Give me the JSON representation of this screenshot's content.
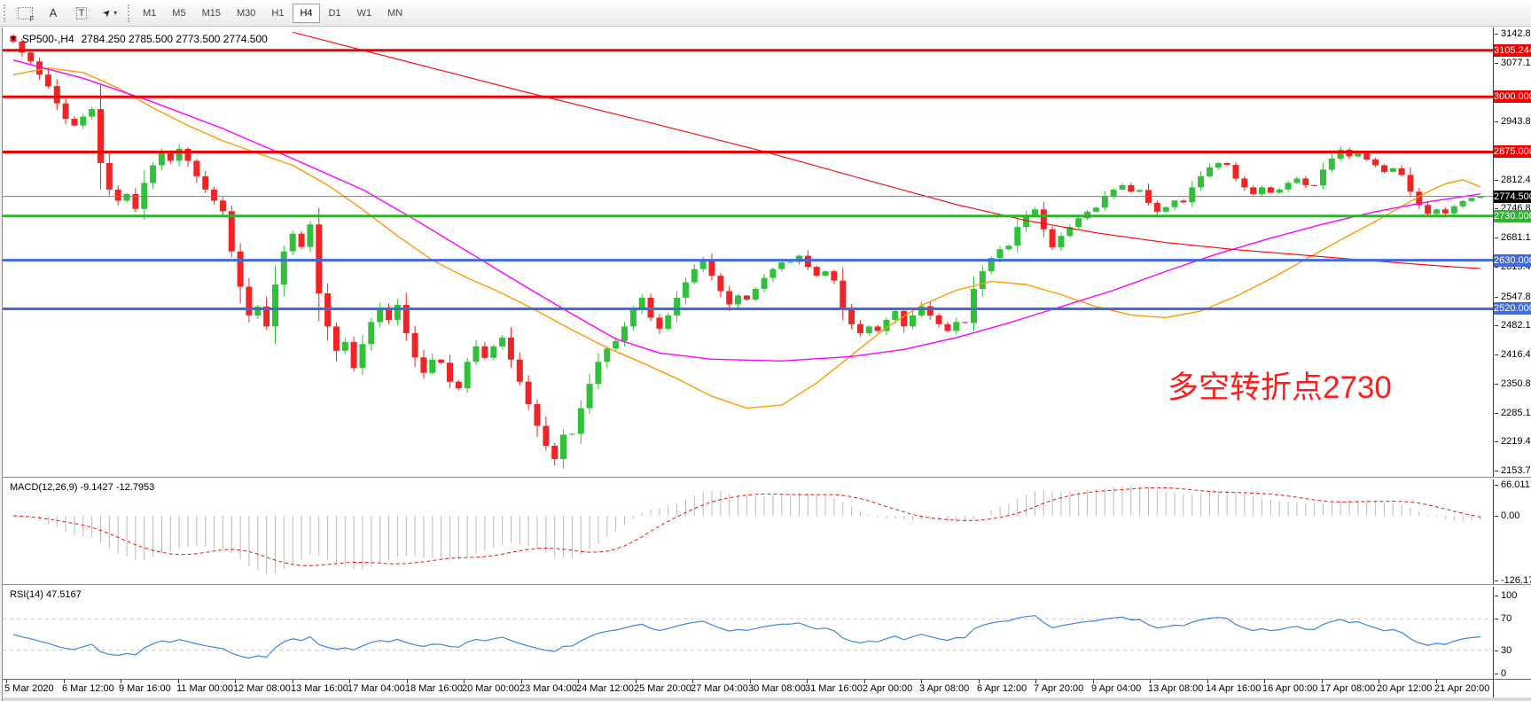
{
  "toolbar": {
    "tools": [
      {
        "name": "chart-shift-tool",
        "glyph": "F"
      },
      {
        "name": "font-tool",
        "glyph": "A"
      },
      {
        "name": "text-tool",
        "glyph": "T"
      },
      {
        "name": "draw-tools",
        "glyph": "➤",
        "caret": "▾"
      }
    ],
    "timeframes": [
      "M1",
      "M5",
      "M15",
      "M30",
      "H1",
      "H4",
      "D1",
      "W1",
      "MN"
    ],
    "active_timeframe": "H4"
  },
  "chart": {
    "dropdown_glyph": "▼",
    "symbol": "SP500-,H4",
    "ohlc_text": "2784.250 2785.500 2773.500 2774.500"
  },
  "annotation": {
    "text": "多空转折点2730",
    "color": "#ff1c1c"
  },
  "indicators": {
    "macd_label": "MACD(12,26,9) -9.1427 -12.7953",
    "rsi_label": "RSI(14) 47.5167"
  },
  "chart_data": {
    "type": "candlestick",
    "symbol": "SP500-",
    "timeframe": "H4",
    "title": "SP500- H4 candlestick chart with MACD and RSI",
    "last_price": 2774.5,
    "first_open": 3138,
    "bull_color": "#2fc13a",
    "bear_color": "#ee2524",
    "closes": [
      3125,
      3100,
      3080,
      3050,
      3024,
      2985,
      2950,
      2935,
      2955,
      2972,
      2850,
      2790,
      2765,
      2780,
      2746,
      2805,
      2845,
      2875,
      2855,
      2882,
      2855,
      2820,
      2790,
      2765,
      2741,
      2650,
      2570,
      2505,
      2525,
      2480,
      2575,
      2650,
      2690,
      2660,
      2711,
      2555,
      2480,
      2425,
      2445,
      2386,
      2440,
      2490,
      2520,
      2495,
      2529,
      2465,
      2410,
      2375,
      2405,
      2398,
      2355,
      2340,
      2400,
      2435,
      2409,
      2435,
      2455,
      2405,
      2355,
      2304,
      2255,
      2210,
      2180,
      2235,
      2237,
      2295,
      2350,
      2400,
      2430,
      2447,
      2480,
      2520,
      2545,
      2500,
      2475,
      2505,
      2545,
      2580,
      2610,
      2630,
      2595,
      2560,
      2530,
      2550,
      2541,
      2565,
      2590,
      2610,
      2625,
      2626,
      2640,
      2615,
      2595,
      2605,
      2584,
      2520,
      2485,
      2465,
      2480,
      2470,
      2495,
      2515,
      2480,
      2505,
      2526,
      2505,
      2485,
      2470,
      2490,
      2488,
      2565,
      2605,
      2635,
      2655,
      2663,
      2705,
      2730,
      2745,
      2700,
      2659,
      2685,
      2705,
      2725,
      2740,
      2749,
      2775,
      2790,
      2800,
      2785,
      2789,
      2760,
      2740,
      2750,
      2765,
      2761,
      2795,
      2820,
      2840,
      2850,
      2846,
      2815,
      2795,
      2780,
      2795,
      2783,
      2790,
      2805,
      2815,
      2800,
      2799,
      2835,
      2860,
      2880,
      2865,
      2874,
      2858,
      2845,
      2830,
      2838,
      2823,
      2785,
      2755,
      2735,
      2745,
      2736,
      2752,
      2764,
      2771,
      2774.5
    ],
    "y_axis": {
      "top": 3142.82,
      "bottom": 2153.79,
      "ticks": [
        {
          "v": 3142.82,
          "label": "3142.820"
        },
        {
          "v": 3077.15,
          "label": "3077.150"
        },
        {
          "v": 2943.82,
          "label": "2943.820"
        },
        {
          "v": 2812.48,
          "label": "2812.480"
        },
        {
          "v": 2746.81,
          "label": "2746.810"
        },
        {
          "v": 2681.14,
          "label": "2681.140"
        },
        {
          "v": 2615.47,
          "label": "2615.470"
        },
        {
          "v": 2547.81,
          "label": "2547.810"
        },
        {
          "v": 2482.14,
          "label": "2482.140"
        },
        {
          "v": 2416.47,
          "label": "2416.470"
        },
        {
          "v": 2350.8,
          "label": "2350.800"
        },
        {
          "v": 2285.13,
          "label": "2285.130"
        },
        {
          "v": 2219.46,
          "label": "2219.460"
        },
        {
          "v": 2153.79,
          "label": "2153.790"
        }
      ]
    },
    "levels": [
      {
        "value": 3105.244,
        "label": "3105.244",
        "color": "#f00000",
        "width": 3
      },
      {
        "value": 3000.0,
        "label": "3000.000",
        "color": "#f00000",
        "width": 3
      },
      {
        "value": 2875.0,
        "label": "2875.000",
        "color": "#f00000",
        "width": 3
      },
      {
        "value": 2730.0,
        "label": "2730.000",
        "color": "#2db32d",
        "width": 3
      },
      {
        "value": 2630.0,
        "label": "2630.000",
        "color": "#4169e1",
        "width": 3
      },
      {
        "value": 2520.0,
        "label": "2520.000",
        "color": "#4169e1",
        "width": 3
      }
    ],
    "current": {
      "value": 2774.5,
      "label": "2774.500",
      "line_color": "#808080",
      "badge_color": "#000000"
    },
    "moving_averages": [
      {
        "name": "fast-ma",
        "color": "#ff9900",
        "width": 1.4,
        "points": [
          [
            0,
            3050
          ],
          [
            4,
            3065
          ],
          [
            8,
            3055
          ],
          [
            12,
            3020
          ],
          [
            16,
            2975
          ],
          [
            20,
            2935
          ],
          [
            24,
            2900
          ],
          [
            28,
            2872
          ],
          [
            32,
            2845
          ],
          [
            36,
            2800
          ],
          [
            40,
            2745
          ],
          [
            44,
            2685
          ],
          [
            48,
            2630
          ],
          [
            52,
            2590
          ],
          [
            56,
            2555
          ],
          [
            60,
            2515
          ],
          [
            64,
            2472
          ],
          [
            68,
            2432
          ],
          [
            72,
            2398
          ],
          [
            76,
            2362
          ],
          [
            80,
            2322
          ],
          [
            84,
            2295
          ],
          [
            88,
            2302
          ],
          [
            92,
            2352
          ],
          [
            96,
            2415
          ],
          [
            100,
            2478
          ],
          [
            104,
            2528
          ],
          [
            108,
            2562
          ],
          [
            112,
            2582
          ],
          [
            116,
            2575
          ],
          [
            120,
            2552
          ],
          [
            124,
            2525
          ],
          [
            128,
            2506
          ],
          [
            132,
            2500
          ],
          [
            136,
            2515
          ],
          [
            140,
            2548
          ],
          [
            144,
            2588
          ],
          [
            148,
            2632
          ],
          [
            152,
            2676
          ],
          [
            156,
            2718
          ],
          [
            159,
            2752
          ],
          [
            162,
            2785
          ],
          [
            164,
            2803
          ],
          [
            166,
            2812
          ],
          [
            168,
            2796
          ]
        ]
      },
      {
        "name": "mid-ma",
        "color": "#ff00ff",
        "width": 1.4,
        "points": [
          [
            0,
            3083
          ],
          [
            8,
            3042
          ],
          [
            16,
            2988
          ],
          [
            24,
            2928
          ],
          [
            32,
            2860
          ],
          [
            40,
            2790
          ],
          [
            46,
            2722
          ],
          [
            52,
            2650
          ],
          [
            58,
            2578
          ],
          [
            64,
            2508
          ],
          [
            69,
            2452
          ],
          [
            74,
            2420
          ],
          [
            80,
            2406
          ],
          [
            88,
            2402
          ],
          [
            96,
            2412
          ],
          [
            102,
            2428
          ],
          [
            108,
            2455
          ],
          [
            114,
            2488
          ],
          [
            120,
            2525
          ],
          [
            126,
            2562
          ],
          [
            132,
            2605
          ],
          [
            138,
            2645
          ],
          [
            144,
            2680
          ],
          [
            150,
            2712
          ],
          [
            156,
            2740
          ],
          [
            162,
            2762
          ],
          [
            168,
            2780
          ]
        ]
      },
      {
        "name": "slow-ma",
        "color": "#ff0000",
        "width": 1.1,
        "points": [
          [
            32,
            3146
          ],
          [
            45,
            3080
          ],
          [
            58,
            3014
          ],
          [
            72,
            2946
          ],
          [
            86,
            2876
          ],
          [
            98,
            2810
          ],
          [
            108,
            2756
          ],
          [
            116,
            2720
          ],
          [
            124,
            2692
          ],
          [
            132,
            2670
          ],
          [
            140,
            2654
          ],
          [
            148,
            2641
          ],
          [
            156,
            2628
          ],
          [
            162,
            2619
          ],
          [
            168,
            2611
          ]
        ]
      }
    ],
    "macd": {
      "fast": 12,
      "slow": 26,
      "smoothing": 9,
      "main_value": -9.1427,
      "signal_value": -12.7953,
      "axis_labels": [
        "66.0117",
        "0.00",
        "-126.173"
      ],
      "hist_color": "#b9b9b9",
      "signal_color": "#ee1111"
    },
    "rsi": {
      "period": 14,
      "value": 47.5167,
      "axis_labels": [
        "100",
        "70",
        "30",
        "0"
      ],
      "levels": [
        70,
        30
      ],
      "line_color": "#3d85e8",
      "level_color": "#c9c9c9"
    },
    "x_labels": [
      "5 Mar 2020",
      "6 Mar 12:00",
      "9 Mar 16:00",
      "11 Mar 00:00",
      "12 Mar 08:00",
      "13 Mar 16:00",
      "17 Mar 04:00",
      "18 Mar 16:00",
      "20 Mar 00:00",
      "23 Mar 04:00",
      "24 Mar 12:00",
      "25 Mar 20:00",
      "27 Mar 04:00",
      "30 Mar 08:00",
      "31 Mar 16:00",
      "2 Apr 00:00",
      "3 Apr 08:00",
      "6 Apr 12:00",
      "7 Apr 20:00",
      "9 Apr 04:00",
      "13 Apr 08:00",
      "14 Apr 16:00",
      "16 Apr 00:00",
      "17 Apr 08:00",
      "20 Apr 12:00",
      "21 Apr 20:00"
    ]
  }
}
